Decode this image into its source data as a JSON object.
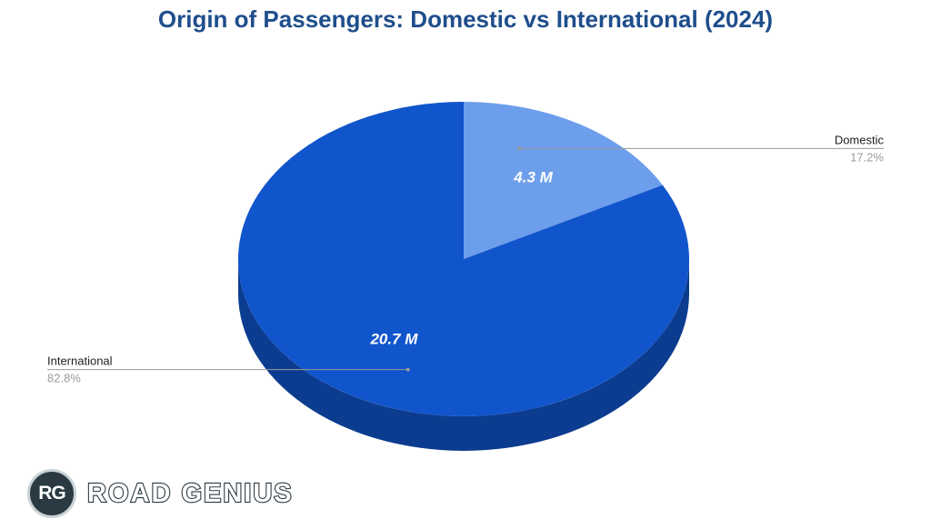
{
  "chart_data": {
    "type": "pie",
    "title": "Origin of Passengers: Domestic vs International (2024)",
    "slices": [
      {
        "name": "Domestic",
        "value": 4.3,
        "value_label": "4.3 M",
        "percent_label": "17.2%",
        "color": "#6d9eeb"
      },
      {
        "name": "International",
        "value": 20.7,
        "value_label": "20.7 M",
        "percent_label": "82.8%",
        "color": "#1155cc"
      }
    ],
    "depth_color": "#0c3c8f",
    "style": "3d"
  },
  "brand": {
    "badge": "RG",
    "name": "ROAD GENIUS"
  }
}
